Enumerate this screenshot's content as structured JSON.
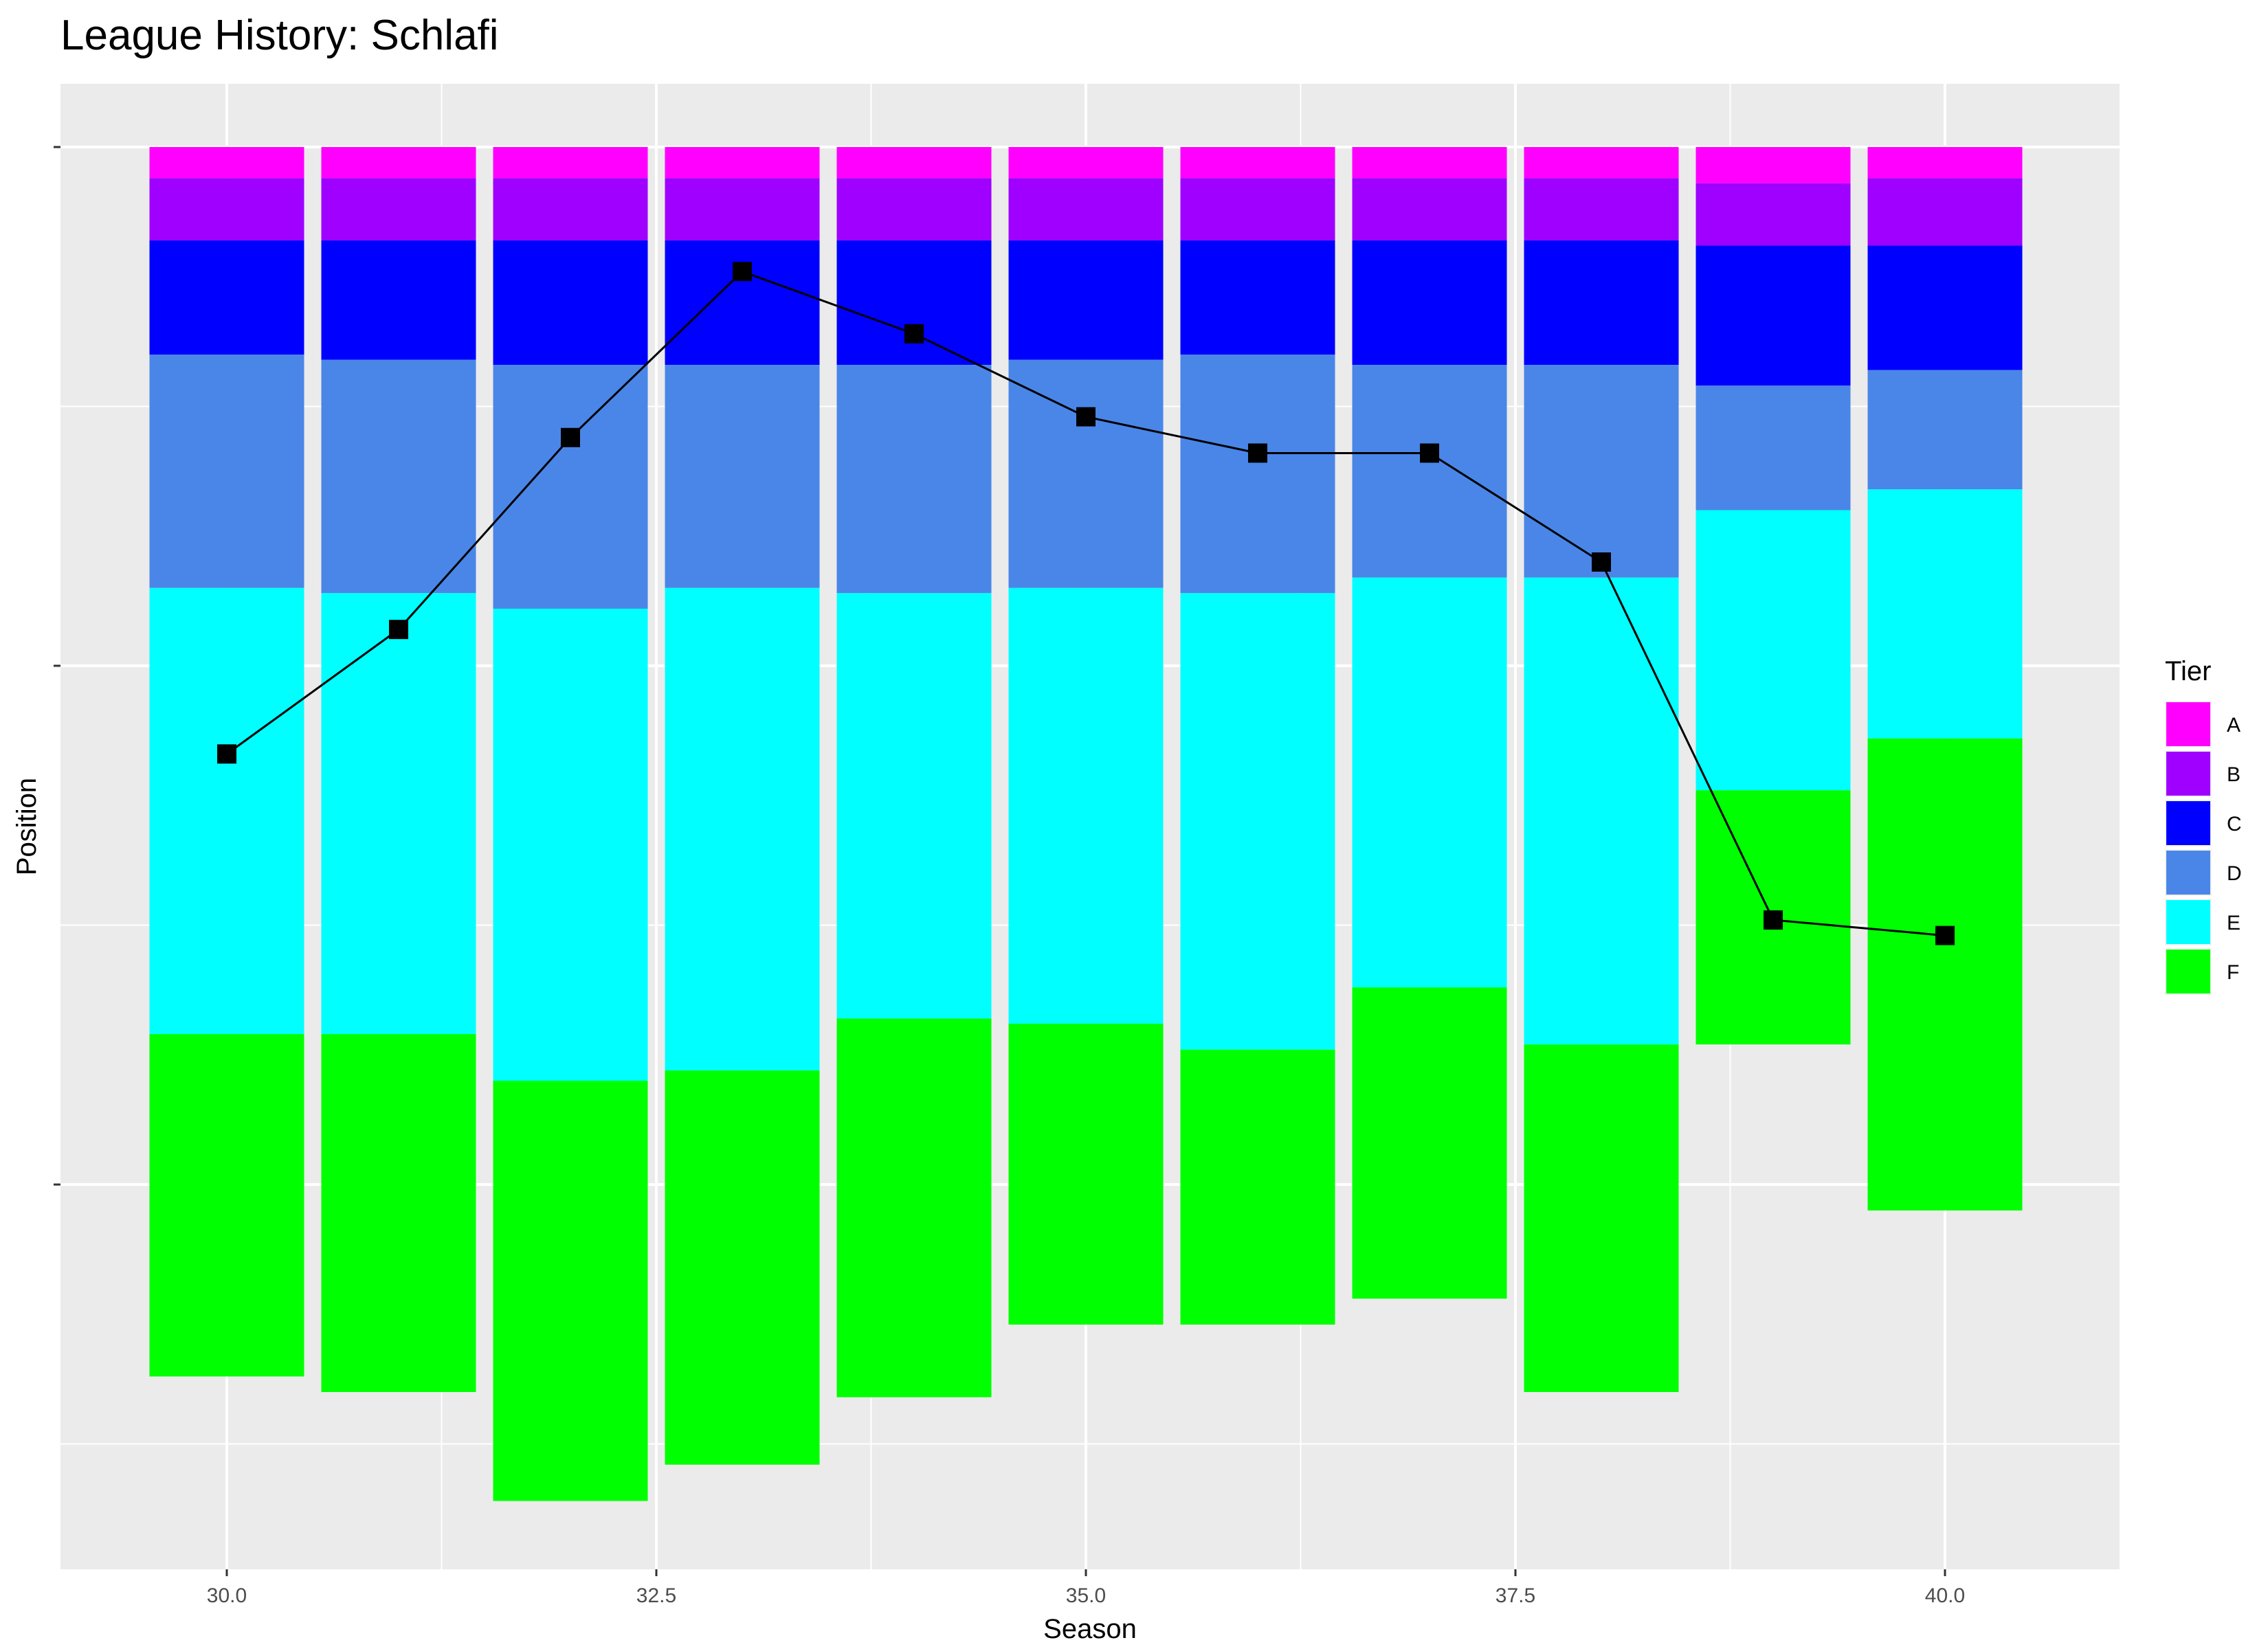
{
  "chart_data": {
    "type": "bar",
    "title": "League History: Schlafi",
    "xlabel": "Season",
    "ylabel": "Position",
    "xlim": [
      29.1,
      41.0
    ],
    "ylim": [
      0,
      272
    ],
    "x_ticks": [
      30.0,
      32.5,
      35.0,
      37.5,
      40.0
    ],
    "x_tick_labels": [
      "30.0",
      "32.5",
      "35.0",
      "37.5",
      "40.0"
    ],
    "y_ticks": [
      0,
      100,
      200
    ],
    "grid": true,
    "stacked": true,
    "bar_width": 0.9,
    "legend": {
      "title": "Tier",
      "position": "right",
      "entries": [
        {
          "key": "A",
          "label": "A",
          "color": "#ff00ff"
        },
        {
          "key": "B",
          "label": "B",
          "color": "#9f00ff"
        },
        {
          "key": "C",
          "label": "C",
          "color": "#0000ff"
        },
        {
          "key": "D",
          "label": "D",
          "color": "#4a86e8"
        },
        {
          "key": "E",
          "label": "E",
          "color": "#00ffff"
        },
        {
          "key": "F",
          "label": "F",
          "color": "#00ff00"
        }
      ]
    },
    "seasons": [
      30,
      31,
      32,
      33,
      34,
      35,
      36,
      37,
      38,
      39,
      40
    ],
    "tier_sizes": [
      {
        "season": 30,
        "A": 6,
        "B": 12,
        "C": 22,
        "D": 45,
        "E": 86,
        "F": 66
      },
      {
        "season": 31,
        "A": 6,
        "B": 12,
        "C": 23,
        "D": 45,
        "E": 85,
        "F": 69
      },
      {
        "season": 32,
        "A": 6,
        "B": 12,
        "C": 24,
        "D": 47,
        "E": 91,
        "F": 81
      },
      {
        "season": 33,
        "A": 6,
        "B": 12,
        "C": 24,
        "D": 43,
        "E": 93,
        "F": 76
      },
      {
        "season": 34,
        "A": 6,
        "B": 12,
        "C": 24,
        "D": 44,
        "E": 82,
        "F": 73
      },
      {
        "season": 35,
        "A": 6,
        "B": 12,
        "C": 23,
        "D": 44,
        "E": 84,
        "F": 58
      },
      {
        "season": 36,
        "A": 6,
        "B": 12,
        "C": 22,
        "D": 46,
        "E": 88,
        "F": 53
      },
      {
        "season": 37,
        "A": 6,
        "B": 12,
        "C": 24,
        "D": 41,
        "E": 79,
        "F": 60
      },
      {
        "season": 38,
        "A": 6,
        "B": 12,
        "C": 24,
        "D": 41,
        "E": 90,
        "F": 67
      },
      {
        "season": 39,
        "A": 7,
        "B": 12,
        "C": 27,
        "D": 24,
        "E": 54,
        "F": 49
      },
      {
        "season": 40,
        "A": 6,
        "B": 13,
        "C": 24,
        "D": 23,
        "E": 48,
        "F": 91
      }
    ],
    "series": [
      {
        "type": "line",
        "marker": "square",
        "color": "#000000",
        "x": [
          30,
          31,
          32,
          33,
          34,
          35,
          36,
          37,
          38,
          39,
          40
        ],
        "y": [
          117,
          93,
          56,
          24,
          36,
          52,
          59,
          59,
          80,
          149,
          152
        ]
      }
    ]
  }
}
